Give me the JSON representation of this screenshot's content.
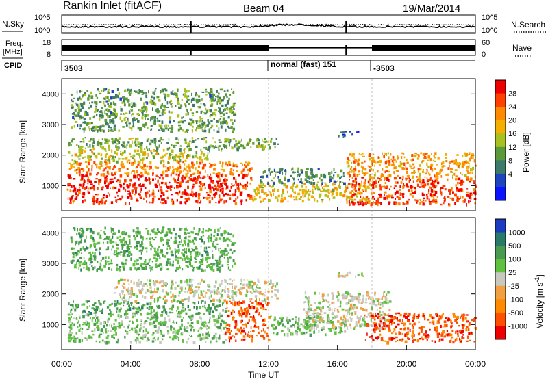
{
  "header": {
    "station": "Rankin Inlet (fitACF)",
    "beam": "Beam 04",
    "date": "19/Mar/2014"
  },
  "noise_panel": {
    "left_label": "N.Sky",
    "right_label": "N.Search",
    "left_ticks": [
      "10^5",
      "10^0"
    ],
    "right_ticks": [
      "10^5",
      "10^0"
    ]
  },
  "freq_panel": {
    "left_label_1": "Freq.",
    "left_label_2": "[MHz]",
    "right_label": "Nave",
    "left_ticks": [
      "18",
      "8"
    ],
    "right_ticks": [
      "60",
      "0"
    ]
  },
  "cpid_panel": {
    "label": "CPID",
    "segments": [
      "3503",
      "normal (fast) 151",
      "-3503"
    ]
  },
  "x_axis": {
    "label": "Time UT",
    "ticks": [
      "00:00",
      "04:00",
      "08:00",
      "12:00",
      "16:00",
      "20:00",
      "00:00"
    ]
  },
  "chart_data": [
    {
      "type": "heatmap",
      "title": "",
      "quantity": "Power",
      "xlabel": "",
      "ylabel": "Slant Range [km]",
      "x_range_hours": [
        0,
        24
      ],
      "ylim": [
        180,
        4500
      ],
      "y_ticks": [
        1000,
        2000,
        3000,
        4000
      ],
      "colorbar": {
        "label": "Power [dB]",
        "ticks": [
          "28",
          "24",
          "20",
          "16",
          "12",
          "8",
          "4"
        ],
        "colors": [
          "#ee0000",
          "#ff4000",
          "#ff8a00",
          "#f4b000",
          "#a8c020",
          "#5a9a3c",
          "#3c7a6a",
          "#1f44c0",
          "#0a14ff"
        ]
      },
      "bands": [
        {
          "x": [
            0.3,
            11.0
          ],
          "y": [
            450,
            1400
          ],
          "level": 0.95
        },
        {
          "x": [
            0.3,
            11.0
          ],
          "y": [
            1400,
            1800
          ],
          "level": 0.75
        },
        {
          "x": [
            0.3,
            8.5
          ],
          "y": [
            1800,
            2200
          ],
          "level": 0.55
        },
        {
          "x": [
            0.3,
            12.5
          ],
          "y": [
            2200,
            2600
          ],
          "level": 0.4
        },
        {
          "x": [
            11.0,
            18.0
          ],
          "y": [
            500,
            1100
          ],
          "level": 0.6
        },
        {
          "x": [
            11.5,
            16.5
          ],
          "y": [
            1100,
            1600
          ],
          "level": 0.3
        },
        {
          "x": [
            16.5,
            24.0
          ],
          "y": [
            400,
            1300
          ],
          "level": 0.9
        },
        {
          "x": [
            16.5,
            24.0
          ],
          "y": [
            1300,
            2100
          ],
          "level": 0.7
        },
        {
          "x": [
            16.0,
            17.2
          ],
          "y": [
            2600,
            2800
          ],
          "level": 0.15
        },
        {
          "x": [
            0.5,
            10.0
          ],
          "y": [
            2800,
            4200
          ],
          "level": 0.35
        }
      ]
    },
    {
      "type": "heatmap",
      "title": "",
      "quantity": "Velocity",
      "xlabel": "Time UT",
      "ylabel": "Slant Range [km]",
      "x_range_hours": [
        0,
        24
      ],
      "ylim": [
        180,
        4500
      ],
      "y_ticks": [
        1000,
        2000,
        3000,
        4000
      ],
      "colorbar": {
        "label": "Velocity [m s^-1]",
        "ticks": [
          "1000",
          "500",
          "100",
          "25",
          "-25",
          "-100",
          "-500",
          "-1000"
        ],
        "colors": [
          "#1c3cc0",
          "#2a7a6a",
          "#4a9a52",
          "#60c040",
          "#c8c8c0",
          "#f0a040",
          "#ff8a00",
          "#ff5000",
          "#ee0000"
        ]
      },
      "bands": [
        {
          "x": [
            0.3,
            9.5
          ],
          "y": [
            450,
            1400
          ],
          "v": 0.25
        },
        {
          "x": [
            0.3,
            9.5
          ],
          "y": [
            1400,
            1800
          ],
          "v": 0.5
        },
        {
          "x": [
            3.0,
            12.5
          ],
          "y": [
            1800,
            2500
          ],
          "v": 0.0
        },
        {
          "x": [
            9.5,
            12.0
          ],
          "y": [
            500,
            1800
          ],
          "v": -0.75
        },
        {
          "x": [
            12.0,
            16.5
          ],
          "y": [
            700,
            1300
          ],
          "v": 0.3
        },
        {
          "x": [
            14.0,
            19.0
          ],
          "y": [
            900,
            2100
          ],
          "v": 0.0
        },
        {
          "x": [
            17.5,
            24.0
          ],
          "y": [
            450,
            1400
          ],
          "v": -0.75
        },
        {
          "x": [
            16.0,
            17.5
          ],
          "y": [
            2600,
            2800
          ],
          "v": 0.0
        },
        {
          "x": [
            0.5,
            10.0
          ],
          "y": [
            2800,
            4200
          ],
          "v": 0.4
        }
      ]
    }
  ]
}
